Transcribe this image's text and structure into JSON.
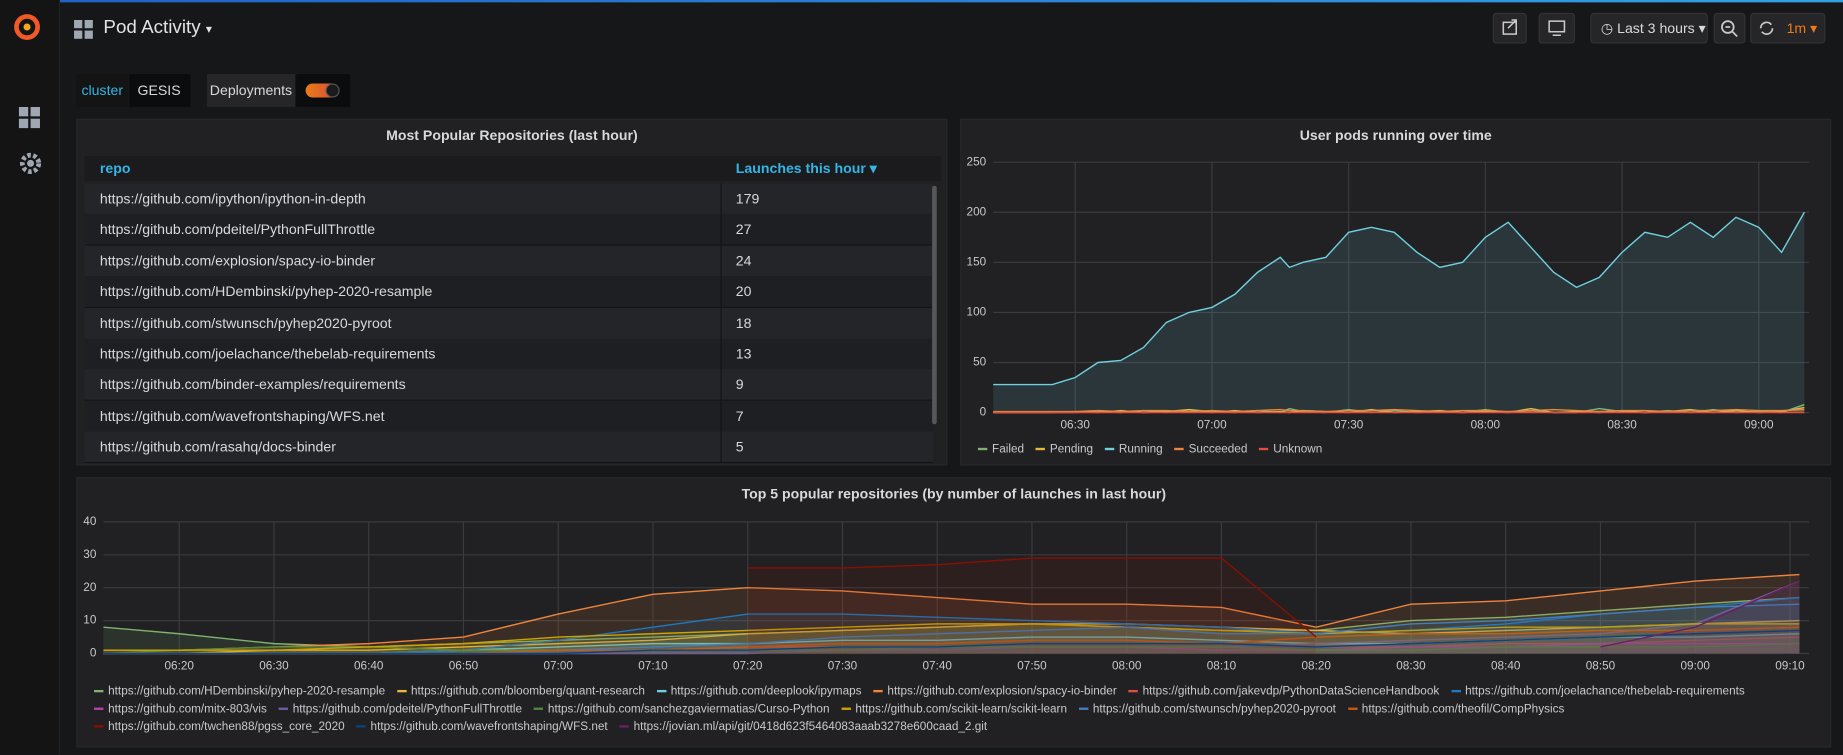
{
  "header": {
    "title": "Pod Activity",
    "time_range": "Last 3 hours",
    "refresh": "1m"
  },
  "variables": {
    "cluster_label": "cluster",
    "cluster_value": "GESIS",
    "deployments_label": "Deployments"
  },
  "table": {
    "title": "Most Popular Repositories (last hour)",
    "columns": [
      "repo",
      "Launches this hour"
    ],
    "rows": [
      [
        "https://github.com/ipython/ipython-in-depth",
        179
      ],
      [
        "https://github.com/pdeitel/PythonFullThrottle",
        27
      ],
      [
        "https://github.com/explosion/spacy-io-binder",
        24
      ],
      [
        "https://github.com/HDembinski/pyhep-2020-resample",
        20
      ],
      [
        "https://github.com/stwunsch/pyhep2020-pyroot",
        18
      ],
      [
        "https://github.com/joelachance/thebelab-requirements",
        13
      ],
      [
        "https://github.com/binder-examples/requirements",
        9
      ],
      [
        "https://github.com/wavefrontshaping/WFS.net",
        7
      ],
      [
        "https://github.com/rasahq/docs-binder",
        5
      ]
    ]
  },
  "chart_data": [
    {
      "type": "line",
      "title": "User pods running over time",
      "area": true,
      "grid": true,
      "x": [
        372,
        385,
        390,
        395,
        400,
        405,
        410,
        415,
        420,
        425,
        430,
        435,
        437,
        440,
        445,
        450,
        455,
        460,
        465,
        470,
        475,
        480,
        485,
        490,
        495,
        500,
        505,
        510,
        515,
        520,
        525,
        530,
        535,
        540,
        545,
        550
      ],
      "xlim": [
        372,
        551
      ],
      "xticks": [
        {
          "value": 390,
          "label": "06:30"
        },
        {
          "value": 420,
          "label": "07:00"
        },
        {
          "value": 450,
          "label": "07:30"
        },
        {
          "value": 480,
          "label": "08:00"
        },
        {
          "value": 510,
          "label": "08:30"
        },
        {
          "value": 540,
          "label": "09:00"
        }
      ],
      "ylim": [
        0,
        250
      ],
      "yticks": [
        0,
        50,
        100,
        150,
        200,
        250
      ],
      "series": [
        {
          "name": "Failed",
          "color": "#7eb26d",
          "values": [
            0,
            0,
            0,
            1,
            0,
            2,
            0,
            3,
            1,
            0,
            2,
            0,
            4,
            1,
            0,
            3,
            0,
            2,
            0,
            1,
            0,
            3,
            0,
            2,
            0,
            0,
            4,
            1,
            0,
            2,
            0,
            3,
            0,
            1,
            0,
            8
          ]
        },
        {
          "name": "Pending",
          "color": "#eab839",
          "values": [
            0,
            0,
            1,
            0,
            2,
            0,
            1,
            3,
            0,
            2,
            0,
            1,
            0,
            2,
            1,
            0,
            3,
            0,
            1,
            2,
            0,
            1,
            0,
            4,
            0,
            1,
            0,
            2,
            0,
            1,
            3,
            0,
            2,
            0,
            1,
            5
          ]
        },
        {
          "name": "Running",
          "color": "#6ed0e0",
          "values": [
            28,
            28,
            35,
            50,
            52,
            65,
            90,
            100,
            105,
            118,
            140,
            155,
            145,
            150,
            155,
            180,
            185,
            180,
            160,
            145,
            150,
            175,
            190,
            165,
            140,
            125,
            135,
            160,
            180,
            175,
            190,
            175,
            195,
            185,
            160,
            200
          ]
        },
        {
          "name": "Succeeded",
          "color": "#ef843c",
          "values": [
            1,
            1,
            1,
            2,
            1,
            2,
            2,
            1,
            2,
            1,
            2,
            3,
            2,
            2,
            1,
            2,
            2,
            3,
            2,
            1,
            2,
            2,
            1,
            2,
            3,
            2,
            1,
            2,
            2,
            1,
            2,
            2,
            3,
            2,
            2,
            3
          ]
        },
        {
          "name": "Unknown",
          "color": "#e24d42",
          "values": [
            0,
            0,
            0,
            0,
            0,
            0,
            0,
            0,
            0,
            0,
            0,
            0,
            0,
            0,
            0,
            0,
            0,
            0,
            0,
            0,
            0,
            0,
            0,
            0,
            0,
            0,
            0,
            0,
            0,
            0,
            0,
            0,
            0,
            0,
            0,
            0
          ]
        }
      ]
    },
    {
      "type": "line",
      "title": "Top 5 popular repositories (by number of launches in last hour)",
      "area": true,
      "grid": true,
      "x": [
        372,
        380,
        390,
        400,
        410,
        420,
        430,
        440,
        450,
        460,
        470,
        480,
        490,
        500,
        510,
        520,
        530,
        540,
        551
      ],
      "xlim": [
        372,
        552
      ],
      "xticks": [
        {
          "value": 380,
          "label": "06:20"
        },
        {
          "value": 390,
          "label": "06:30"
        },
        {
          "value": 400,
          "label": "06:40"
        },
        {
          "value": 410,
          "label": "06:50"
        },
        {
          "value": 420,
          "label": "07:00"
        },
        {
          "value": 430,
          "label": "07:10"
        },
        {
          "value": 440,
          "label": "07:20"
        },
        {
          "value": 450,
          "label": "07:30"
        },
        {
          "value": 460,
          "label": "07:40"
        },
        {
          "value": 470,
          "label": "07:50"
        },
        {
          "value": 480,
          "label": "08:00"
        },
        {
          "value": 490,
          "label": "08:10"
        },
        {
          "value": 500,
          "label": "08:20"
        },
        {
          "value": 510,
          "label": "08:30"
        },
        {
          "value": 520,
          "label": "08:40"
        },
        {
          "value": 530,
          "label": "08:50"
        },
        {
          "value": 540,
          "label": "09:00"
        },
        {
          "value": 550,
          "label": "09:10"
        }
      ],
      "ylim": [
        0,
        40
      ],
      "yticks": [
        0,
        10,
        20,
        30,
        40
      ],
      "series": [
        {
          "name": "https://github.com/HDembinski/pyhep-2020-resample",
          "color": "#7eb26d",
          "values": [
            8,
            6,
            3,
            2,
            3,
            4,
            5,
            6,
            7,
            8,
            9,
            8,
            7,
            7,
            10,
            11,
            13,
            15,
            17
          ]
        },
        {
          "name": "https://github.com/bloomberg/quant-research",
          "color": "#eab839",
          "values": [
            0,
            0,
            1,
            1,
            2,
            3,
            4,
            6,
            7,
            8,
            9,
            9,
            8,
            7,
            6,
            7,
            8,
            9,
            10
          ]
        },
        {
          "name": "https://github.com/deeplook/ipymaps",
          "color": "#6ed0e0",
          "values": [
            0,
            0,
            0,
            0,
            1,
            2,
            3,
            3,
            4,
            4,
            5,
            5,
            4,
            3,
            3,
            4,
            5,
            5,
            6
          ]
        },
        {
          "name": "https://github.com/explosion/spacy-io-binder",
          "color": "#ef843c",
          "values": [
            1,
            1,
            2,
            3,
            5,
            12,
            18,
            20,
            19,
            17,
            15,
            15,
            14,
            8,
            15,
            16,
            19,
            22,
            24
          ]
        },
        {
          "name": "https://github.com/jakevdp/PythonDataScienceHandbook",
          "color": "#e24d42",
          "values": [
            0,
            0,
            0,
            0,
            0,
            1,
            1,
            2,
            2,
            2,
            3,
            3,
            3,
            2,
            2,
            3,
            3,
            4,
            5
          ]
        },
        {
          "name": "https://github.com/joelachance/thebelab-requirements",
          "color": "#1f78c1",
          "values": [
            0,
            0,
            0,
            0,
            1,
            4,
            8,
            12,
            12,
            11,
            10,
            9,
            8,
            6,
            7,
            9,
            12,
            14,
            17
          ]
        },
        {
          "name": "https://github.com/mitx-803/vis",
          "color": "#ba43a9",
          "values": [
            0,
            0,
            0,
            0,
            0,
            0,
            1,
            1,
            1,
            2,
            2,
            2,
            1,
            1,
            2,
            2,
            3,
            3,
            3
          ]
        },
        {
          "name": "https://github.com/pdeitel/PythonFullThrottle",
          "color": "#705da0",
          "values": [
            0,
            0,
            0,
            0,
            0,
            0,
            0,
            0,
            1,
            1,
            2,
            2,
            2,
            3,
            4,
            5,
            6,
            9,
            22
          ]
        },
        {
          "name": "https://github.com/sanchezgaviermatias/Curso-Python",
          "color": "#508642",
          "values": [
            0,
            1,
            2,
            2,
            1,
            1,
            1,
            1,
            1,
            2,
            2,
            2,
            2,
            1,
            1,
            2,
            2,
            2,
            3
          ]
        },
        {
          "name": "https://github.com/scikit-learn/scikit-learn",
          "color": "#cca300",
          "values": [
            1,
            1,
            1,
            2,
            3,
            5,
            6,
            7,
            8,
            9,
            9,
            8,
            7,
            6,
            7,
            8,
            8,
            9,
            9
          ]
        },
        {
          "name": "https://github.com/stwunsch/pyhep2020-pyroot",
          "color": "#447ebc",
          "values": [
            0,
            0,
            0,
            0,
            0,
            1,
            2,
            3,
            5,
            6,
            7,
            8,
            6,
            6,
            9,
            10,
            12,
            14,
            15
          ]
        },
        {
          "name": "https://github.com/theofil/CompPhysics",
          "color": "#c15c17",
          "values": [
            0,
            0,
            0,
            0,
            0,
            1,
            1,
            2,
            3,
            3,
            4,
            4,
            3,
            5,
            6,
            6,
            7,
            7,
            8
          ]
        },
        {
          "name": "https://github.com/twchen88/pgss_core_2020",
          "color": "#890f02",
          "values": [
            null,
            null,
            null,
            null,
            null,
            null,
            null,
            26,
            26,
            27,
            29,
            29,
            29,
            5,
            null,
            null,
            null,
            null,
            null
          ]
        },
        {
          "name": "https://github.com/wavefrontshaping/WFS.net",
          "color": "#0a437c",
          "values": [
            0,
            0,
            0,
            0,
            0,
            0,
            1,
            1,
            2,
            2,
            3,
            3,
            3,
            2,
            3,
            4,
            5,
            6,
            7
          ]
        },
        {
          "name": "https://jovian.ml/api/git/0418d623f5464083aaab3278e600caad_2.git",
          "color": "#6d1f62",
          "values": [
            null,
            null,
            null,
            null,
            null,
            null,
            null,
            null,
            null,
            null,
            null,
            null,
            null,
            null,
            null,
            null,
            2,
            8,
            22
          ]
        }
      ]
    }
  ]
}
